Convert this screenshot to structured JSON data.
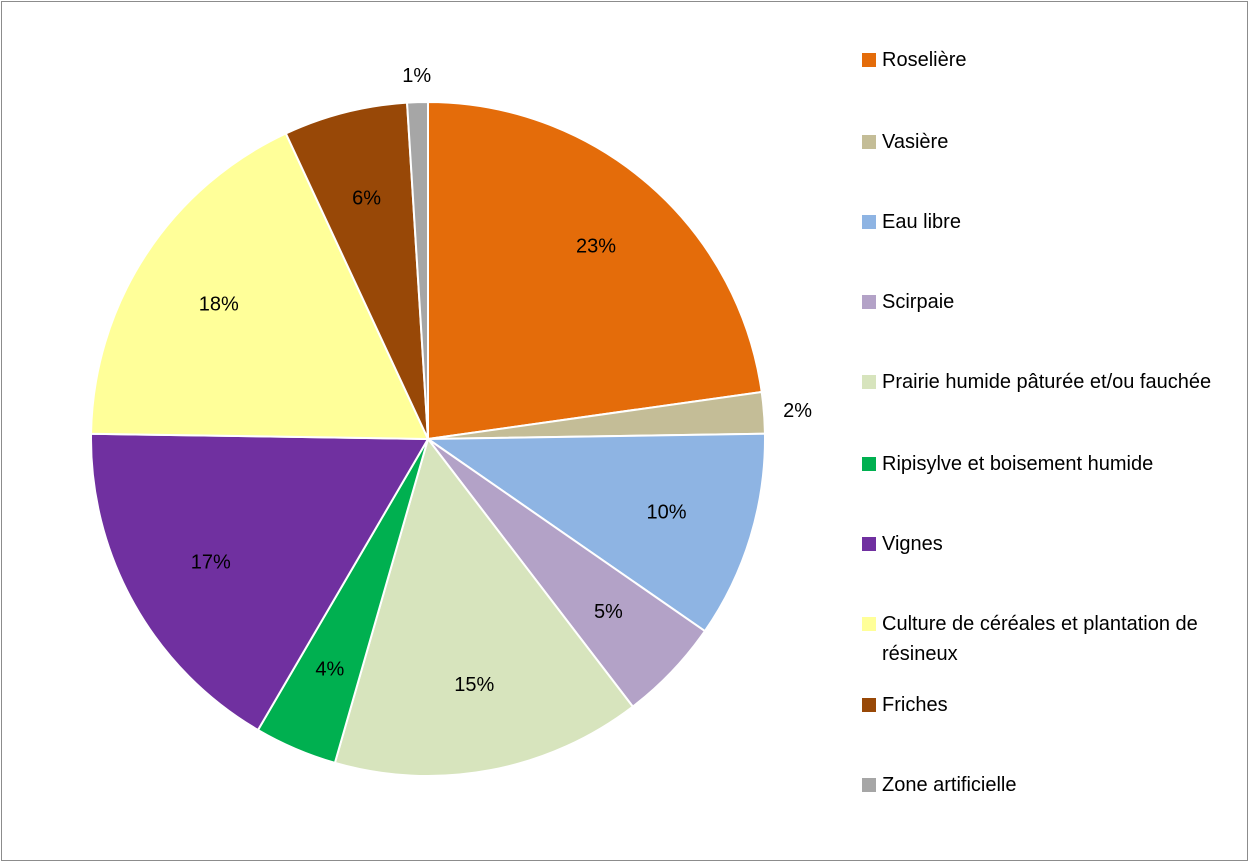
{
  "chart_data": {
    "type": "pie",
    "title": "",
    "slices": [
      {
        "label": "Roselière",
        "value": 23,
        "display": "23%",
        "color": "#E46C0A"
      },
      {
        "label": "Vasière",
        "value": 2,
        "display": "2%",
        "color": "#C4BD97"
      },
      {
        "label": "Eau libre",
        "value": 10,
        "display": "10%",
        "color": "#8EB4E3"
      },
      {
        "label": "Scirpaie",
        "value": 5,
        "display": "5%",
        "color": "#B3A2C7"
      },
      {
        "label": "Prairie humide pâturée et/ou fauchée",
        "value": 15,
        "display": "15%",
        "color": "#D7E4BD"
      },
      {
        "label": "Ripisylve et boisement humide",
        "value": 4,
        "display": "4%",
        "color": "#00B050"
      },
      {
        "label": "Vignes",
        "value": 17,
        "display": "17%",
        "color": "#7030A0"
      },
      {
        "label": "Culture de céréales et plantation de résineux",
        "value": 18,
        "display": "18%",
        "color": "#FFFF99"
      },
      {
        "label": "Friches",
        "value": 6,
        "display": "6%",
        "color": "#984807"
      },
      {
        "label": "Zone artificielle",
        "value": 1,
        "display": "1%",
        "color": "#A6A6A6"
      }
    ],
    "legend_position": "right"
  }
}
